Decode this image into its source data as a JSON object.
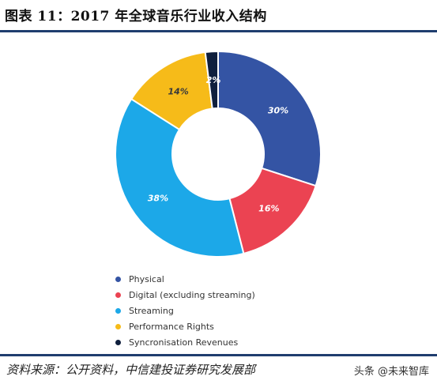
{
  "header": {
    "title": "图表 11：2017 年全球音乐行业收入结构"
  },
  "chart_data": {
    "type": "pie",
    "categories": [
      "Physical",
      "Digital (excluding streaming)",
      "Streaming",
      "Performance Rights",
      "Syncronisation Revenues"
    ],
    "values": [
      30,
      16,
      38,
      14,
      2
    ],
    "labels": [
      "30%",
      "16%",
      "38%",
      "14%",
      "2%"
    ],
    "colors": [
      "#3454a4",
      "#eb4352",
      "#1ca8e8",
      "#f6bb19",
      "#0f1f3d"
    ],
    "donut": true,
    "legend_position": "bottom-left"
  },
  "footer": {
    "source": "资料来源：公开资料，中信建投证券研究发展部",
    "watermark": "头条 @未来智库"
  }
}
